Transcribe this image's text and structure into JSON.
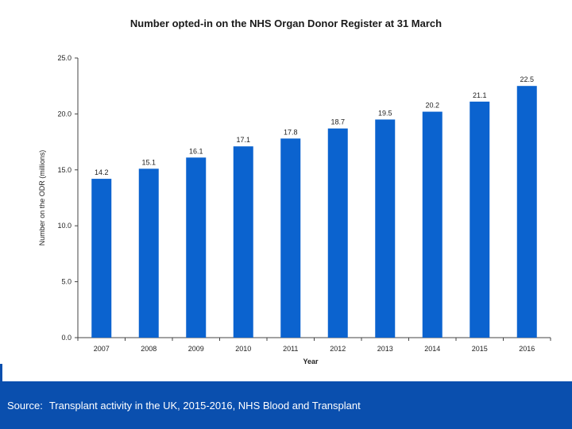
{
  "colors": {
    "bar": "#0b63cf",
    "footer": "#0a4fae",
    "axis": "#444444"
  },
  "chart_data": {
    "type": "bar",
    "title": "Number opted-in on the NHS Organ Donor Register at 31 March",
    "xlabel": "Year",
    "ylabel": "Number on the ODR (millions)",
    "ylim": [
      0,
      25
    ],
    "y_ticks": [
      "0.0",
      "5.0",
      "10.0",
      "15.0",
      "20.0",
      "25.0"
    ],
    "grid": false,
    "categories": [
      "2007",
      "2008",
      "2009",
      "2010",
      "2011",
      "2012",
      "2013",
      "2014",
      "2015",
      "2016"
    ],
    "values": [
      14.2,
      15.1,
      16.1,
      17.1,
      17.8,
      18.7,
      19.5,
      20.2,
      21.1,
      22.5
    ],
    "value_labels": [
      "14.2",
      "15.1",
      "16.1",
      "17.1",
      "17.8",
      "18.7",
      "19.5",
      "20.2",
      "21.1",
      "22.5"
    ]
  },
  "footer": {
    "source_label": "Source:",
    "source_text": "Transplant activity in the UK, 2015-2016, NHS Blood and Transplant"
  }
}
